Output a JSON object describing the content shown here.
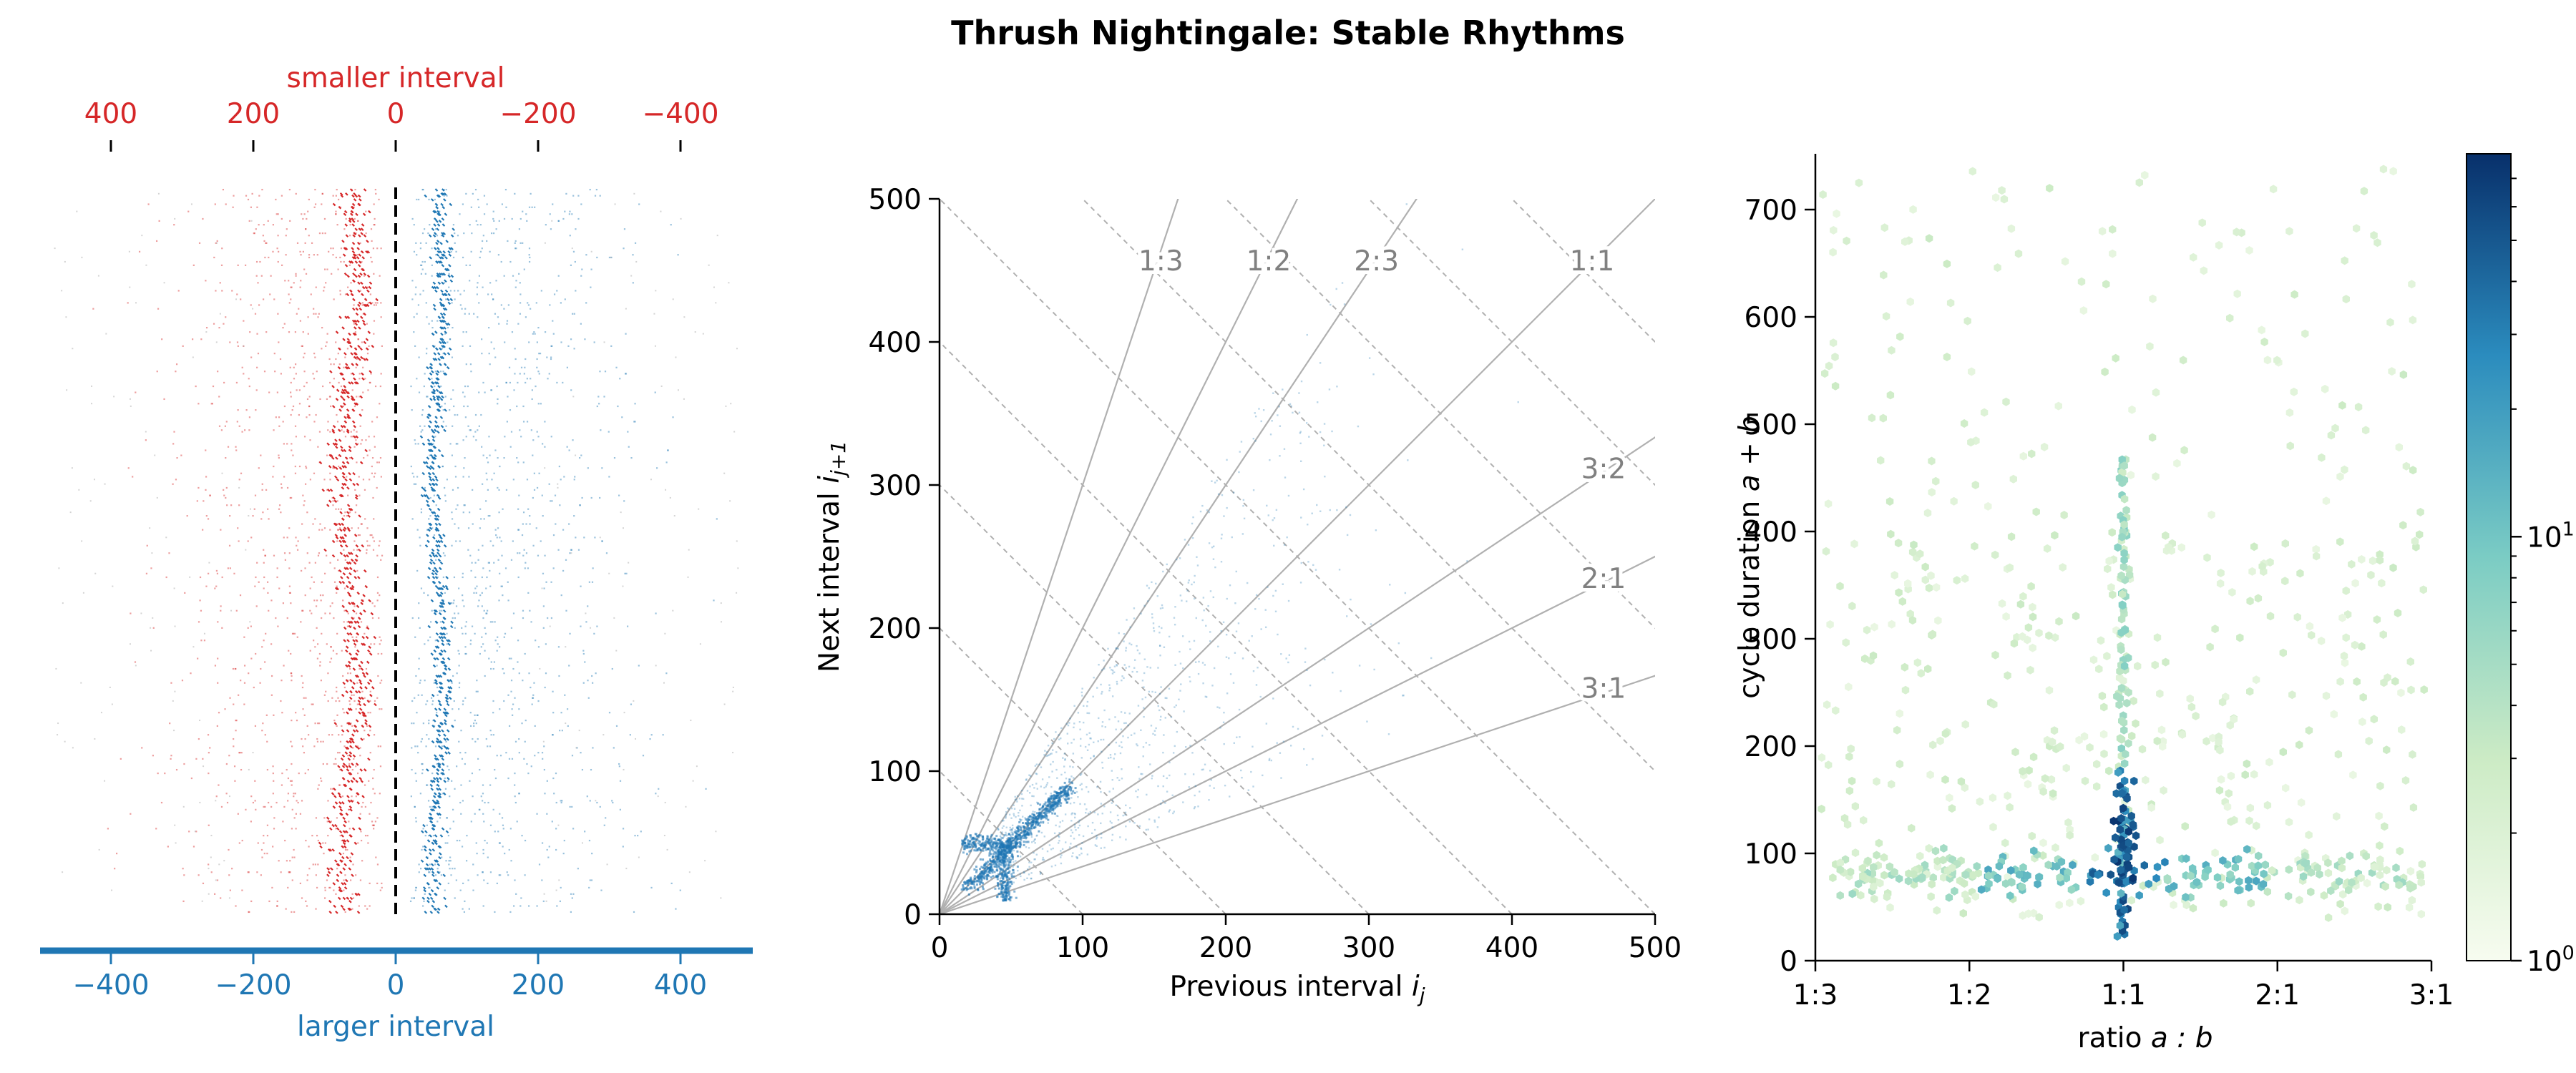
{
  "figure_title": "Thrush Nightingale: Stable Rhythms",
  "colors": {
    "smaller": "#d62728",
    "larger": "#1f77b4",
    "axis": "#000000",
    "ratio_label": "#808080",
    "guide_line": "#b0b0b0",
    "colormap": [
      "#f7fcf0",
      "#ccebc5",
      "#7bccc4",
      "#2b8cbe",
      "#08306b"
    ]
  },
  "chart_data": [
    {
      "type": "scatter",
      "panel": "left",
      "title": "",
      "top_axis": {
        "label": "smaller interval",
        "ticks": [
          400,
          200,
          0,
          -200,
          -400
        ],
        "tick_labels": [
          "400",
          "200",
          "0",
          "−200",
          "−400"
        ],
        "range": [
          500,
          -500
        ]
      },
      "bottom_axis": {
        "label": "larger interval",
        "ticks": [
          -400,
          -200,
          0,
          200,
          400
        ],
        "tick_labels": [
          "−400",
          "−200",
          "0",
          "200",
          "400"
        ],
        "range": [
          -500,
          500
        ]
      },
      "reference_line_x": 0,
      "series": [
        {
          "name": "smaller interval",
          "dense_region": [
            -90,
            -40
          ],
          "sparse_region": [
            -500,
            0
          ]
        },
        {
          "name": "larger interval",
          "dense_region": [
            40,
            80
          ],
          "sparse_region": [
            0,
            500
          ]
        }
      ],
      "grid": false
    },
    {
      "type": "scatter",
      "panel": "middle",
      "xlabel": "Previous interval ij",
      "xlabel_main": "Previous interval ",
      "xlabel_var": "i",
      "xlabel_sub": "j",
      "ylabel_main": "Next interval ",
      "ylabel_var": "i",
      "ylabel_sub": "j+1",
      "xlim": [
        0,
        500
      ],
      "ylim": [
        0,
        500
      ],
      "xticks": [
        0,
        100,
        200,
        300,
        400,
        500
      ],
      "yticks": [
        0,
        100,
        200,
        300,
        400,
        500
      ],
      "ratio_lines": [
        {
          "label": "1:3",
          "slope": 3
        },
        {
          "label": "1:2",
          "slope": 2
        },
        {
          "label": "2:3",
          "slope": 1.5
        },
        {
          "label": "1:1",
          "slope": 1
        },
        {
          "label": "3:2",
          "slope": 0.6667
        },
        {
          "label": "2:1",
          "slope": 0.5
        },
        {
          "label": "3:1",
          "slope": 0.3333
        }
      ],
      "cycle_lines": [
        100,
        200,
        300,
        400,
        500,
        600,
        700,
        800,
        900
      ],
      "clusters": [
        {
          "x": 60,
          "y": 60,
          "note": "1:1 cluster"
        },
        {
          "x": 20,
          "y": 50
        },
        {
          "x": 50,
          "y": 25
        }
      ],
      "grid": false
    },
    {
      "type": "heatmap",
      "panel": "right",
      "subtype": "hexbin",
      "xlabel_main": "ratio ",
      "xlabel_var": "a : b",
      "ylabel_main": "cycle duration ",
      "ylabel_var": "a + b",
      "xticks": [
        "1:3",
        "1:2",
        "1:1",
        "2:1",
        "3:1"
      ],
      "ylim": [
        0,
        750
      ],
      "yticks": [
        0,
        100,
        200,
        300,
        400,
        500,
        600,
        700
      ],
      "colorbar": {
        "scale": "log",
        "range": [
          1,
          80
        ],
        "tick_labels": [
          {
            "base": "10",
            "exp": "0"
          },
          {
            "base": "10",
            "exp": "1"
          }
        ]
      },
      "features": [
        {
          "name": "1:1 column",
          "x": "1:1",
          "y_range": [
            20,
            480
          ],
          "peak_y": 110
        },
        {
          "name": "horizontal band",
          "y": 80,
          "x_range": [
            "1:3",
            "3:1"
          ]
        }
      ],
      "grid": false
    }
  ]
}
